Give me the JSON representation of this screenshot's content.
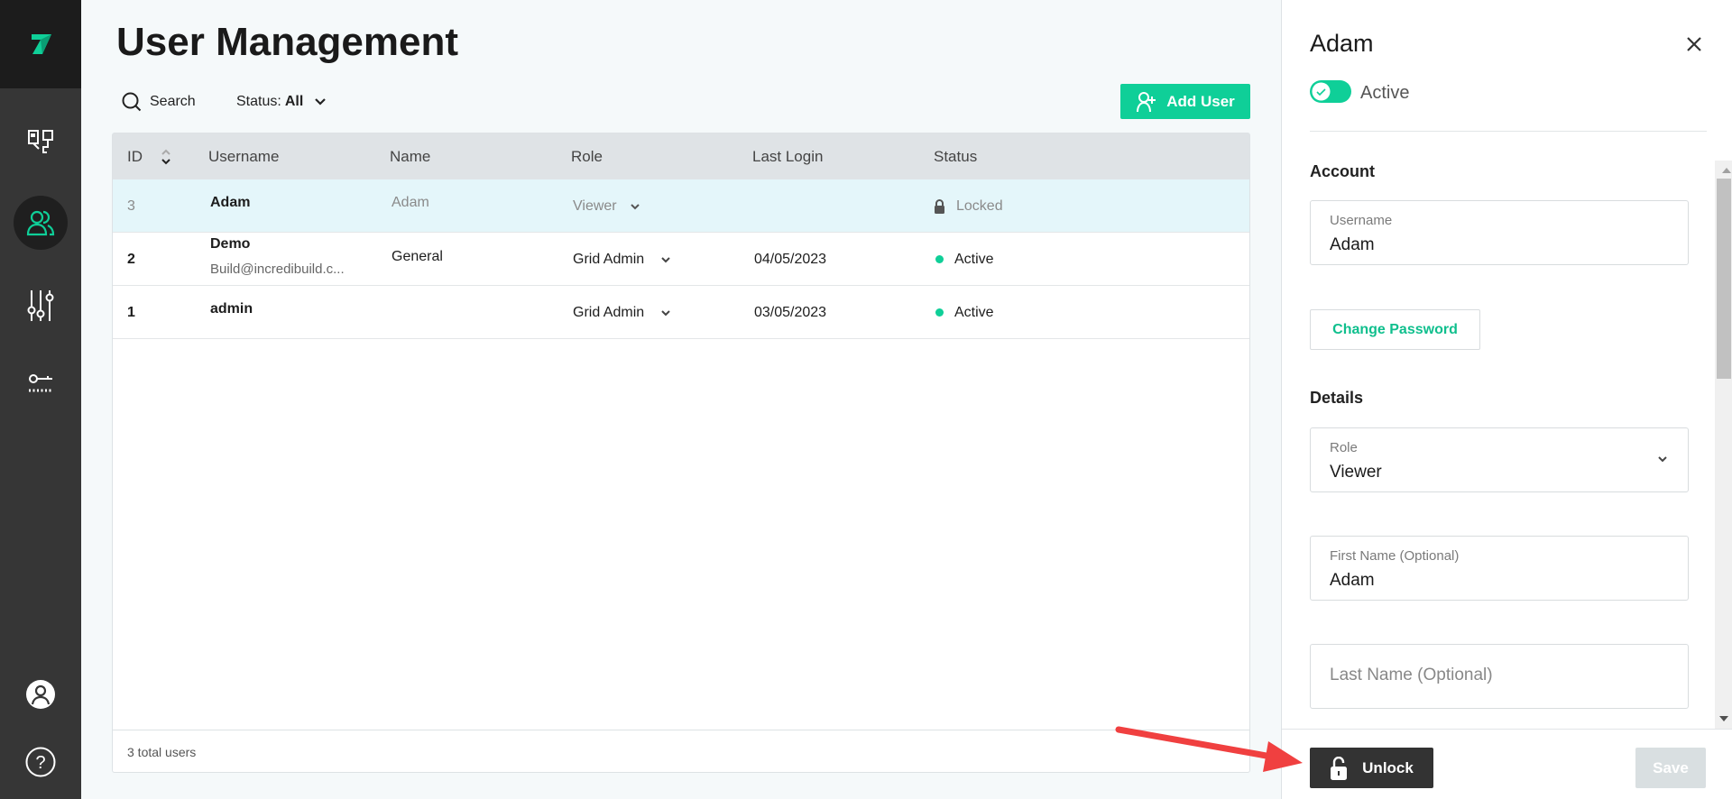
{
  "colors": {
    "accent": "#0fcf98",
    "sidebar": "#363636",
    "selected_row": "#e4f6fa",
    "annotation_arrow": "#f04040"
  },
  "sidebar": {
    "items": [
      {
        "icon": "build-monitor-icon"
      },
      {
        "icon": "users-icon",
        "active": true
      },
      {
        "icon": "settings-sliders-icon"
      },
      {
        "icon": "license-key-icon"
      }
    ],
    "bottom": [
      {
        "icon": "user-profile-icon"
      },
      {
        "icon": "help-icon"
      }
    ]
  },
  "page": {
    "title": "User Management"
  },
  "toolbar": {
    "search_label": "Search",
    "status_label": "Status:",
    "status_value": "All",
    "add_user_label": "Add User"
  },
  "table": {
    "columns": [
      "ID",
      "Username",
      "Name",
      "Role",
      "Last Login",
      "Status"
    ],
    "rows": [
      {
        "id": "3",
        "username": "Adam",
        "email": "",
        "name": "Adam",
        "role": "Viewer",
        "last_login": "",
        "status": "Locked"
      },
      {
        "id": "2",
        "username": "Demo",
        "email": "Build@incredibuild.c...",
        "name": "General",
        "role": "Grid Admin",
        "last_login": "04/05/2023",
        "status": "Active"
      },
      {
        "id": "1",
        "username": "admin",
        "email": "",
        "name": "",
        "role": "Grid Admin",
        "last_login": "03/05/2023",
        "status": "Active"
      }
    ],
    "footer": "3 total users"
  },
  "panel": {
    "title": "Adam",
    "active_label": "Active",
    "active": true,
    "account_heading": "Account",
    "username_label": "Username",
    "username_value": "Adam",
    "change_password_label": "Change Password",
    "details_heading": "Details",
    "role_label": "Role",
    "role_value": "Viewer",
    "first_name_label": "First Name (Optional)",
    "first_name_value": "Adam",
    "last_name_placeholder": "Last Name (Optional)",
    "unlock_label": "Unlock",
    "save_label": "Save"
  }
}
